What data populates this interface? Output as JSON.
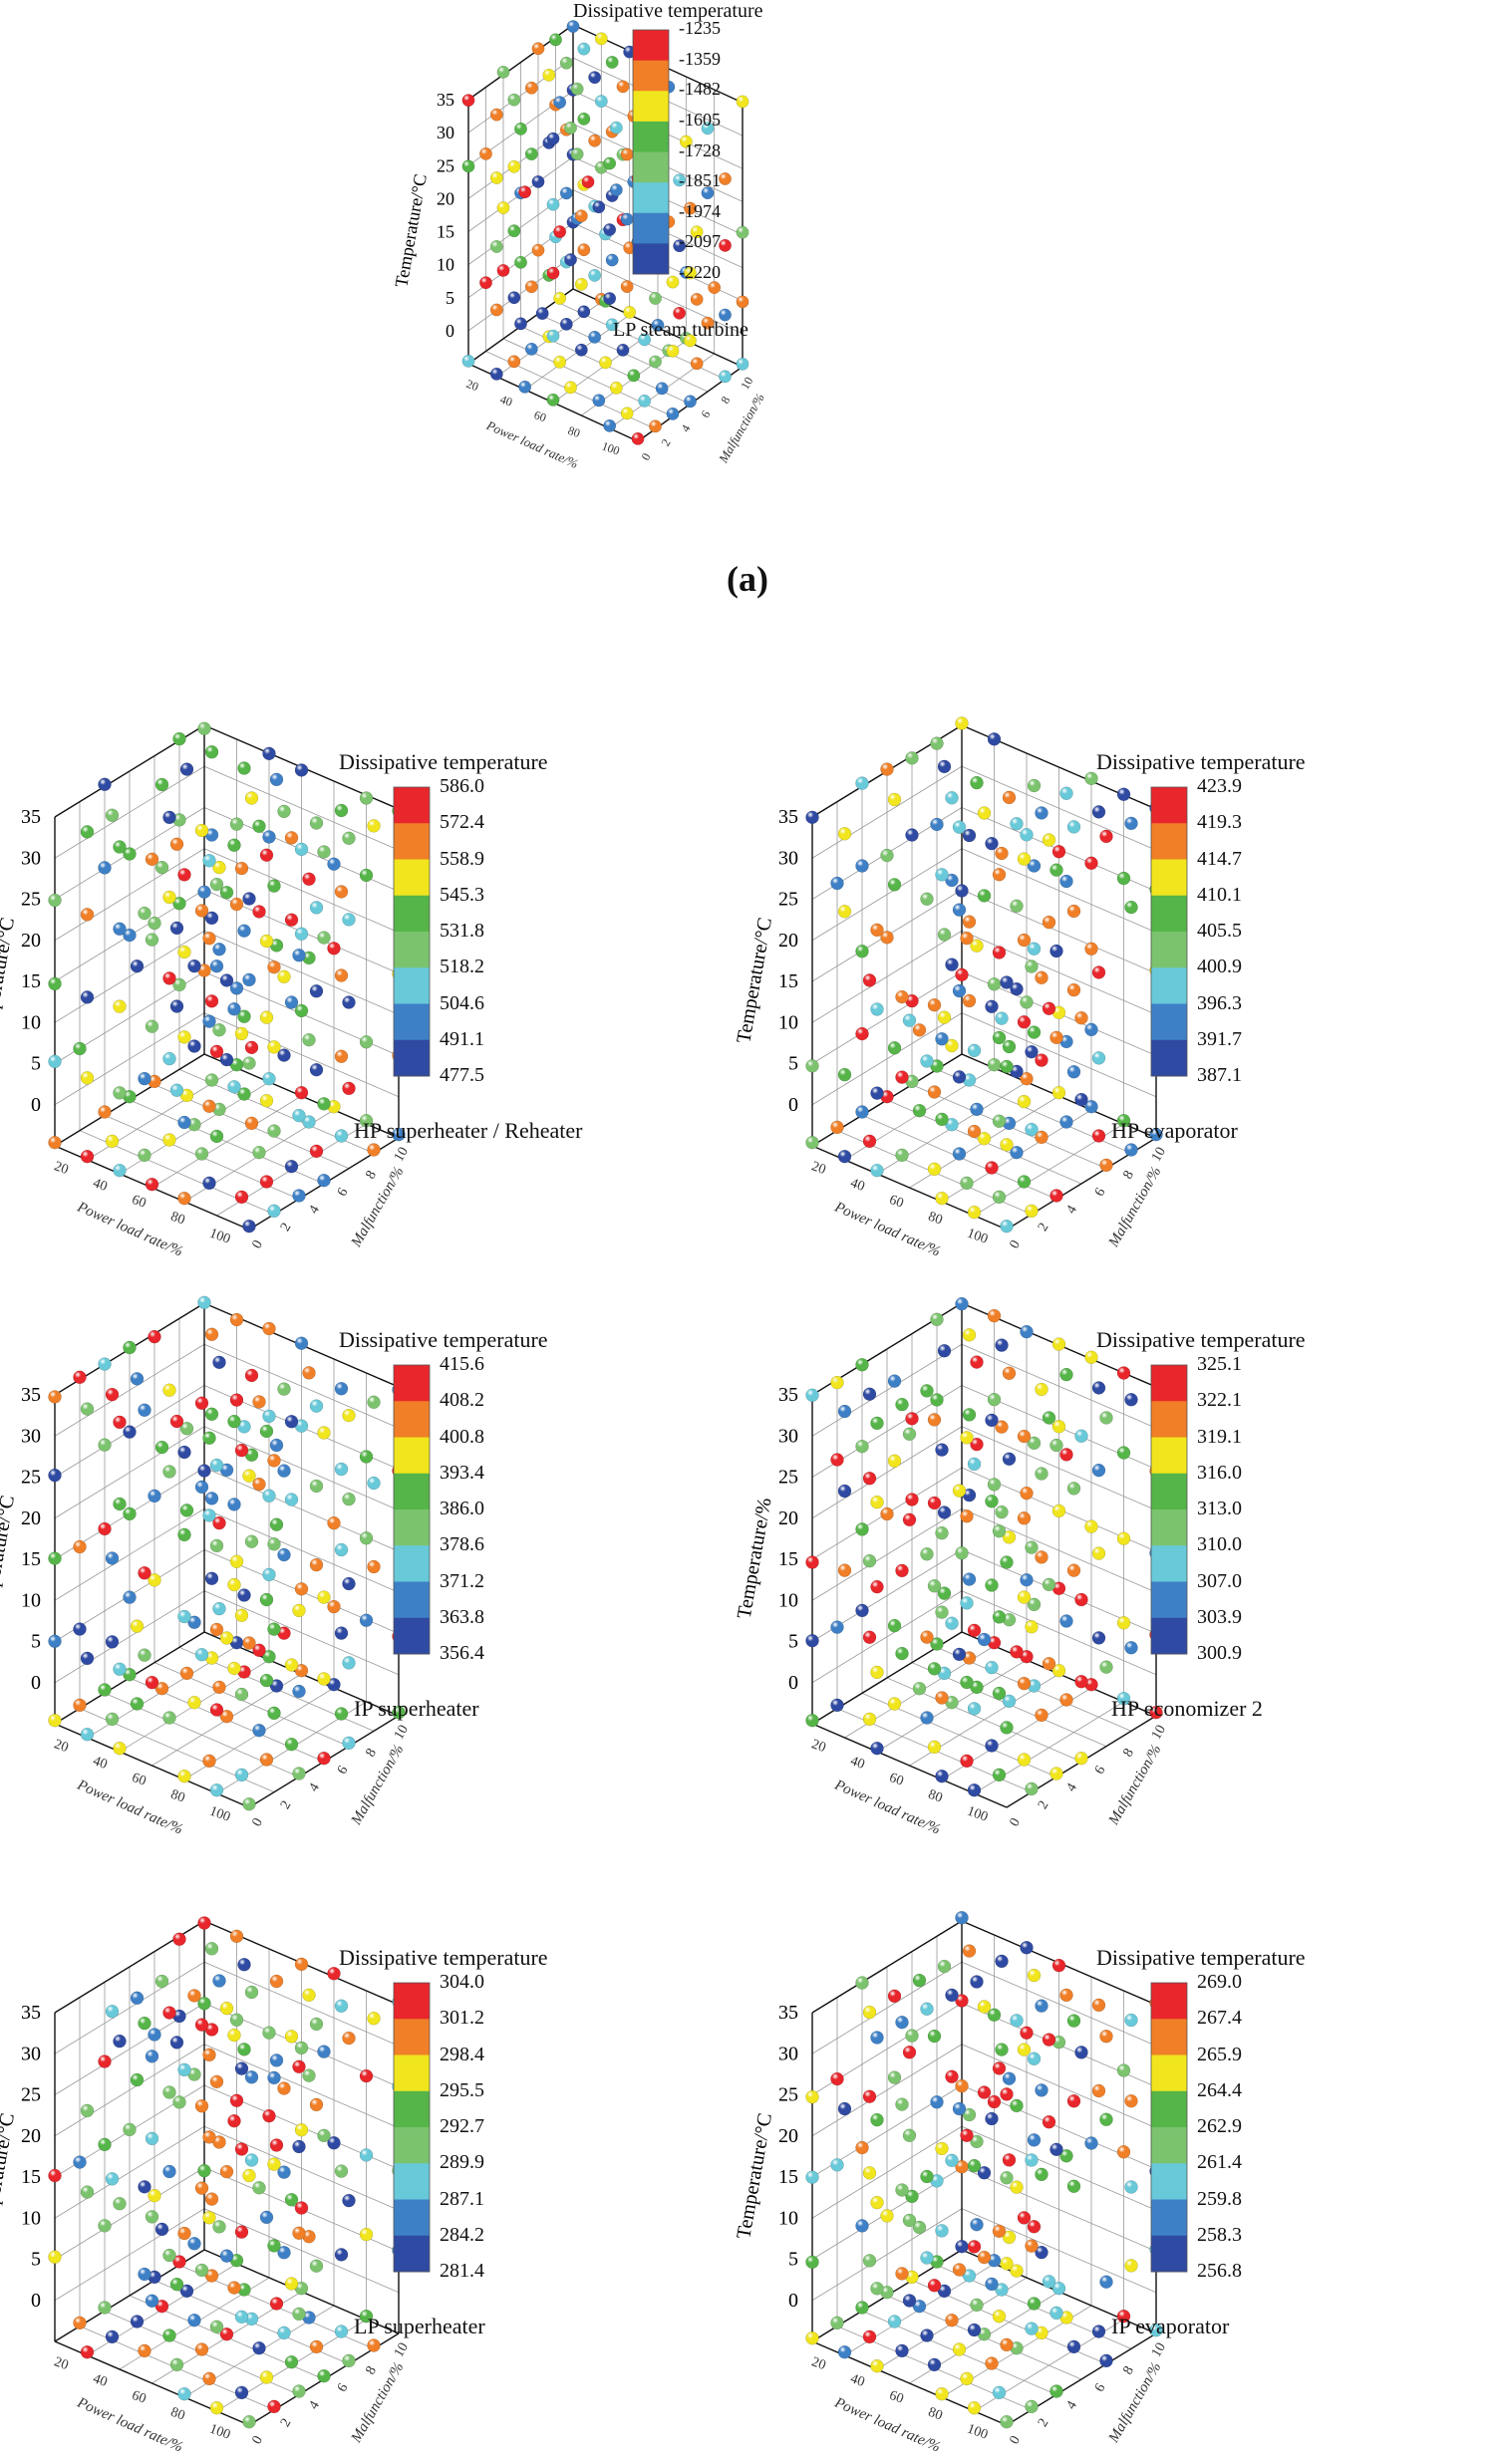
{
  "figure_caption": "(a)",
  "chart_data": [
    {
      "type": "scatter",
      "title": "Dissipative temperature",
      "panel_label": "LP steam turbine",
      "xlabel": "Power load rate/%",
      "ylabel": "Malfunction/%",
      "zlabel": "Temperature/°C",
      "z_ticks": [
        0,
        5,
        10,
        15,
        20,
        25,
        30,
        35
      ],
      "x_ticks": [
        20,
        40,
        60,
        80,
        100
      ],
      "y_ticks": [
        0,
        2,
        4,
        6,
        8,
        10
      ],
      "colorbar_ticks": [
        "-1235",
        "-1359",
        "-1482",
        "-1605",
        "-1728",
        "-1851",
        "-1974",
        "-2097",
        "-2220"
      ],
      "value_range": [
        -2220,
        -1235
      ]
    },
    {
      "type": "scatter",
      "title": "Dissipative temperature",
      "panel_label": "HP superheater / Reheater",
      "xlabel": "Power load rate/%",
      "ylabel": "Malfunction/%",
      "zlabel": "Temperature/°C",
      "z_ticks": [
        0,
        5,
        10,
        15,
        20,
        25,
        30,
        35
      ],
      "x_ticks": [
        20,
        40,
        60,
        80,
        100
      ],
      "y_ticks": [
        0,
        2,
        4,
        6,
        8,
        10
      ],
      "colorbar_ticks": [
        "586.0",
        "572.4",
        "558.9",
        "545.3",
        "531.8",
        "518.2",
        "504.6",
        "491.1",
        "477.5"
      ],
      "value_range": [
        477.5,
        586.0
      ]
    },
    {
      "type": "scatter",
      "title": "Dissipative temperature",
      "panel_label": "HP evaporator",
      "xlabel": "Power load rate/%",
      "ylabel": "Malfunction/%",
      "zlabel": "Temperature/°C",
      "z_ticks": [
        0,
        5,
        10,
        15,
        20,
        25,
        30,
        35
      ],
      "x_ticks": [
        20,
        40,
        60,
        80,
        100
      ],
      "y_ticks": [
        0,
        2,
        4,
        6,
        8,
        10
      ],
      "colorbar_ticks": [
        "423.9",
        "419.3",
        "414.7",
        "410.1",
        "405.5",
        "400.9",
        "396.3",
        "391.7",
        "387.1"
      ],
      "value_range": [
        387.1,
        423.9
      ]
    },
    {
      "type": "scatter",
      "title": "Dissipative temperature",
      "panel_label": "IP superheater",
      "xlabel": "Power load rate/%",
      "ylabel": "Malfunction/%",
      "zlabel": "Temperature/°C",
      "z_ticks": [
        0,
        5,
        10,
        15,
        20,
        25,
        30,
        35
      ],
      "x_ticks": [
        20,
        40,
        60,
        80,
        100
      ],
      "y_ticks": [
        0,
        2,
        4,
        6,
        8,
        10
      ],
      "colorbar_ticks": [
        "415.6",
        "408.2",
        "400.8",
        "393.4",
        "386.0",
        "378.6",
        "371.2",
        "363.8",
        "356.4"
      ],
      "value_range": [
        356.4,
        415.6
      ]
    },
    {
      "type": "scatter",
      "title": "Dissipative temperature",
      "panel_label": "HP economizer 2",
      "xlabel": "Power load rate/%",
      "ylabel": "Malfunction/%",
      "zlabel": "Temperature/%",
      "z_ticks": [
        0,
        5,
        10,
        15,
        20,
        25,
        30,
        35
      ],
      "x_ticks": [
        20,
        40,
        60,
        80,
        100
      ],
      "y_ticks": [
        0,
        2,
        4,
        6,
        8,
        10
      ],
      "colorbar_ticks": [
        "325.1",
        "322.1",
        "319.1",
        "316.0",
        "313.0",
        "310.0",
        "307.0",
        "303.9",
        "300.9"
      ],
      "value_range": [
        300.9,
        325.1
      ]
    },
    {
      "type": "scatter",
      "title": "Dissipative temperature",
      "panel_label": "LP superheater",
      "xlabel": "Power load rate/%",
      "ylabel": "Malfunction/%",
      "zlabel": "Temperature/°C",
      "z_ticks": [
        0,
        5,
        10,
        15,
        20,
        25,
        30,
        35
      ],
      "x_ticks": [
        20,
        40,
        60,
        80,
        100
      ],
      "y_ticks": [
        0,
        2,
        4,
        6,
        8,
        10
      ],
      "colorbar_ticks": [
        "304.0",
        "301.2",
        "298.4",
        "295.5",
        "292.7",
        "289.9",
        "287.1",
        "284.2",
        "281.4"
      ],
      "value_range": [
        281.4,
        304.0
      ]
    },
    {
      "type": "scatter",
      "title": "Dissipative temperature",
      "panel_label": "IP evaporator",
      "xlabel": "Power load rate/%",
      "ylabel": "Malfunction/%",
      "zlabel": "Temperature/°C",
      "z_ticks": [
        0,
        5,
        10,
        15,
        20,
        25,
        30,
        35
      ],
      "x_ticks": [
        20,
        40,
        60,
        80,
        100
      ],
      "y_ticks": [
        0,
        2,
        4,
        6,
        8,
        10
      ],
      "colorbar_ticks": [
        "269.0",
        "267.4",
        "265.9",
        "264.4",
        "262.9",
        "261.4",
        "259.8",
        "258.3",
        "256.8"
      ],
      "value_range": [
        256.8,
        269.0
      ]
    }
  ],
  "colors": {
    "bands": [
      "#e8262b",
      "#f07f27",
      "#f1e51d",
      "#55b548",
      "#7cc36e",
      "#68c9d9",
      "#3e80c6",
      "#2f4aa2"
    ]
  }
}
